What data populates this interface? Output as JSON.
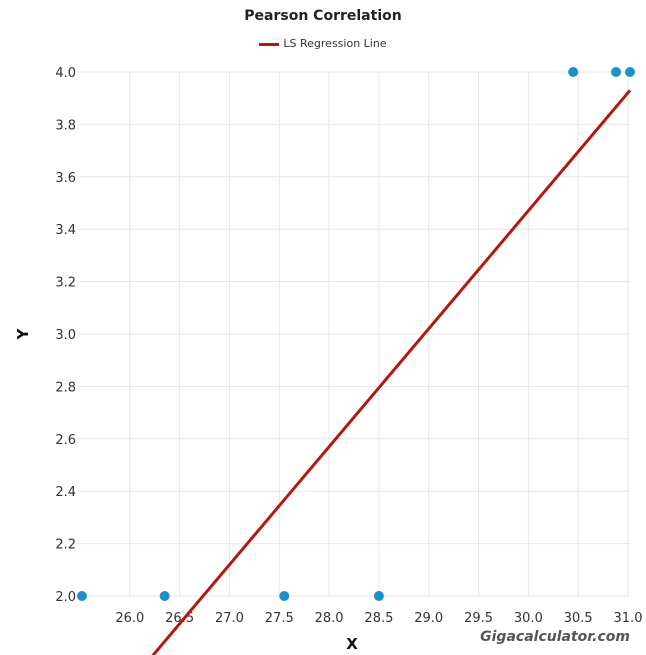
{
  "chart_data": {
    "type": "scatter",
    "title": "Pearson Correlation",
    "xlabel": "X",
    "ylabel": "Y",
    "xlim": [
      25.48,
      31.02
    ],
    "ylim": [
      2.0,
      4.0
    ],
    "x_ticks": [
      "26.0",
      "26.5",
      "27.0",
      "27.5",
      "28.0",
      "28.5",
      "29.0",
      "29.5",
      "30.0",
      "30.5",
      "31.0"
    ],
    "y_ticks": [
      "2.0",
      "2.2",
      "2.4",
      "2.6",
      "2.8",
      "3.0",
      "3.2",
      "3.4",
      "3.6",
      "3.8",
      "4.0"
    ],
    "grid": true,
    "legend_position": "top-center",
    "series": [
      {
        "kind": "points",
        "color": "#1f8fcc",
        "points": [
          [
            25.52,
            2.0
          ],
          [
            26.35,
            2.0
          ],
          [
            27.55,
            2.0
          ],
          [
            28.5,
            2.0
          ],
          [
            30.45,
            4.0
          ],
          [
            30.88,
            4.0
          ],
          [
            31.02,
            4.0
          ]
        ]
      },
      {
        "kind": "line",
        "name": "LS Regression Line",
        "color": "#b3180e",
        "points": [
          [
            26.18,
            1.75
          ],
          [
            31.02,
            3.93
          ]
        ]
      }
    ],
    "watermark": "Gigacalculator.com"
  }
}
